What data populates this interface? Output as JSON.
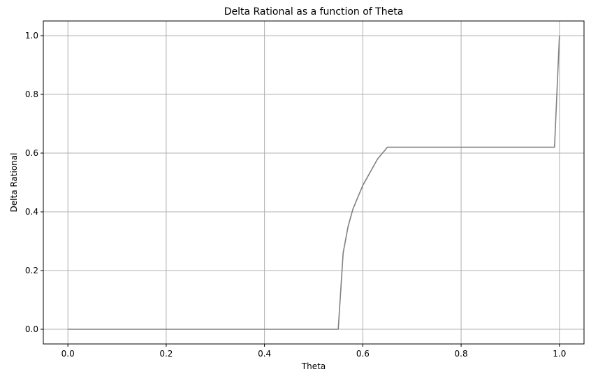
{
  "chart_data": {
    "type": "line",
    "title": "Delta Rational as a function of Theta",
    "xlabel": "Theta",
    "ylabel": "Delta Rational",
    "xlim": [
      -0.05,
      1.05
    ],
    "ylim": [
      -0.05,
      1.05
    ],
    "grid": true,
    "x_ticks": [
      0.0,
      0.2,
      0.4,
      0.6,
      0.8,
      1.0
    ],
    "x_tick_labels": [
      "0.0",
      "0.2",
      "0.4",
      "0.6",
      "0.8",
      "1.0"
    ],
    "y_ticks": [
      0.0,
      0.2,
      0.4,
      0.6,
      0.8,
      1.0
    ],
    "y_tick_labels": [
      "0.0",
      "0.2",
      "0.4",
      "0.6",
      "0.8",
      "1.0"
    ],
    "series": [
      {
        "color": "#808080",
        "x": [
          0.0,
          0.55,
          0.56,
          0.57,
          0.58,
          0.6,
          0.63,
          0.65,
          0.99,
          1.0
        ],
        "y": [
          0.0,
          0.0,
          0.26,
          0.35,
          0.41,
          0.49,
          0.58,
          0.62,
          0.62,
          1.0
        ]
      }
    ]
  }
}
